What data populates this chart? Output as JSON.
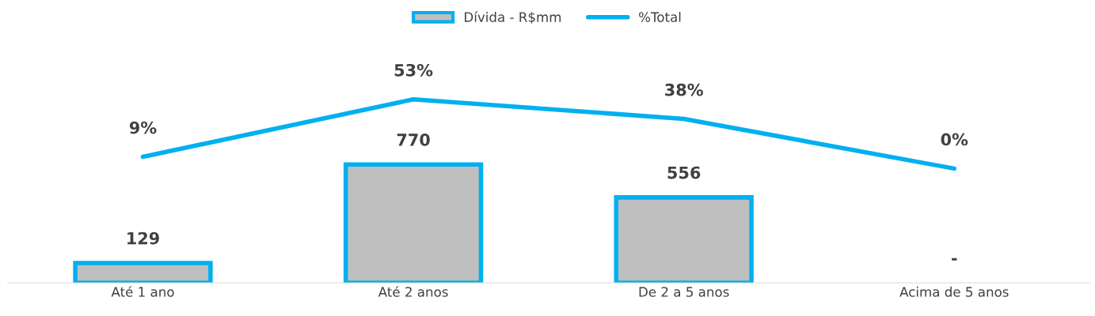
{
  "chart_data": {
    "type": "bar",
    "categories": [
      "Até 1 ano",
      "Até 2 anos",
      "De 2 a 5 anos",
      "Acima de 5 anos"
    ],
    "series": [
      {
        "name": "Dívida - R$mm",
        "color": "#bfbfbf",
        "values": [
          129,
          770,
          556,
          0
        ],
        "value_labels": [
          "129",
          "770",
          "556",
          "-"
        ]
      },
      {
        "name": "%Total",
        "type": "line",
        "axis": "y2",
        "color": "#00b0f0",
        "values": [
          9,
          53,
          38,
          0
        ],
        "value_labels": [
          "9%",
          "53%",
          "38%",
          "0%"
        ]
      }
    ],
    "tick_labels": "x",
    "legend": "top",
    "grid": false,
    "marker": "none"
  }
}
